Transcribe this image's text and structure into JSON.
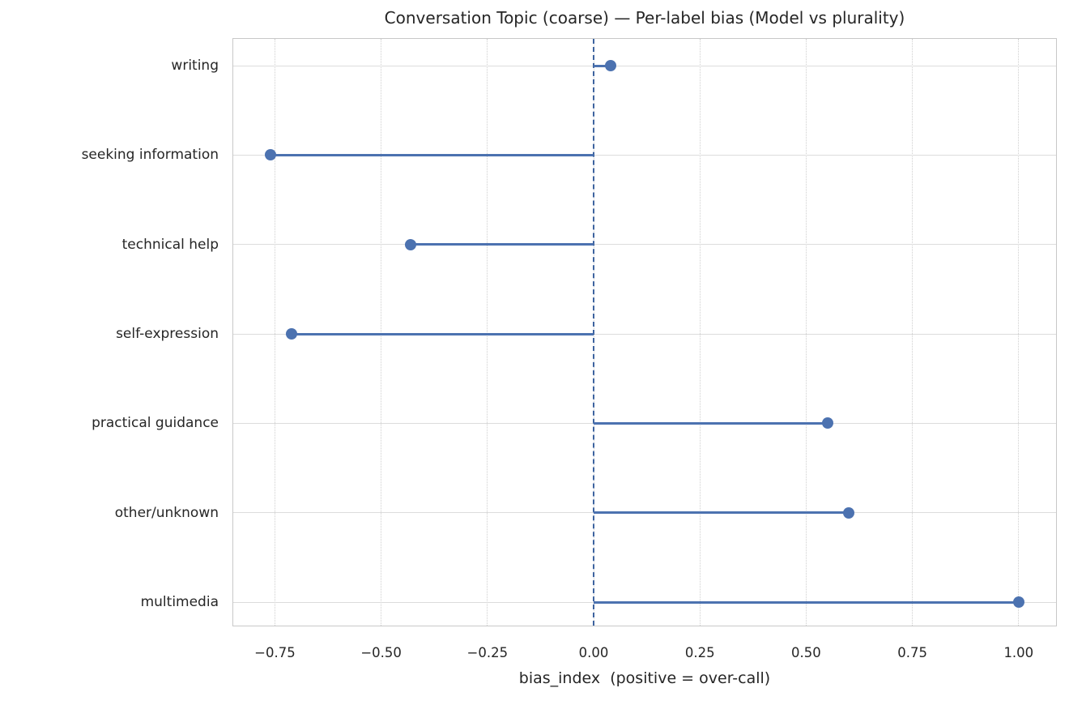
{
  "chart_data": {
    "type": "scatter",
    "variant": "horizontal-lollipop",
    "title": "Conversation Topic (coarse) — Per-label bias (Model vs plurality)",
    "xlabel": "bias_index  (positive = over-call)",
    "ylabel": "",
    "categories": [
      "writing",
      "seeking information",
      "technical help",
      "self-expression",
      "practical guidance",
      "other/unknown",
      "multimedia"
    ],
    "values": [
      0.04,
      -0.76,
      -0.43,
      -0.71,
      0.55,
      0.6,
      1.0
    ],
    "baseline": 0,
    "xlim": [
      -0.848,
      1.088
    ],
    "xticks": [
      -0.75,
      -0.5,
      -0.25,
      0,
      0.25,
      0.5,
      0.75,
      1.0
    ],
    "xtick_labels": [
      "−0.75",
      "−0.50",
      "−0.25",
      "0.00",
      "0.25",
      "0.50",
      "0.75",
      "1.00"
    ],
    "grid": true,
    "legend": "none",
    "colors": {
      "accent": "#4C72B0",
      "zero_line": "#3d639f",
      "grid_horizontal": "#dcdcdc",
      "grid_vertical": "#cfcfcf",
      "spine": "#c8c8c8",
      "text": "#262626",
      "background": "#ffffff"
    }
  }
}
